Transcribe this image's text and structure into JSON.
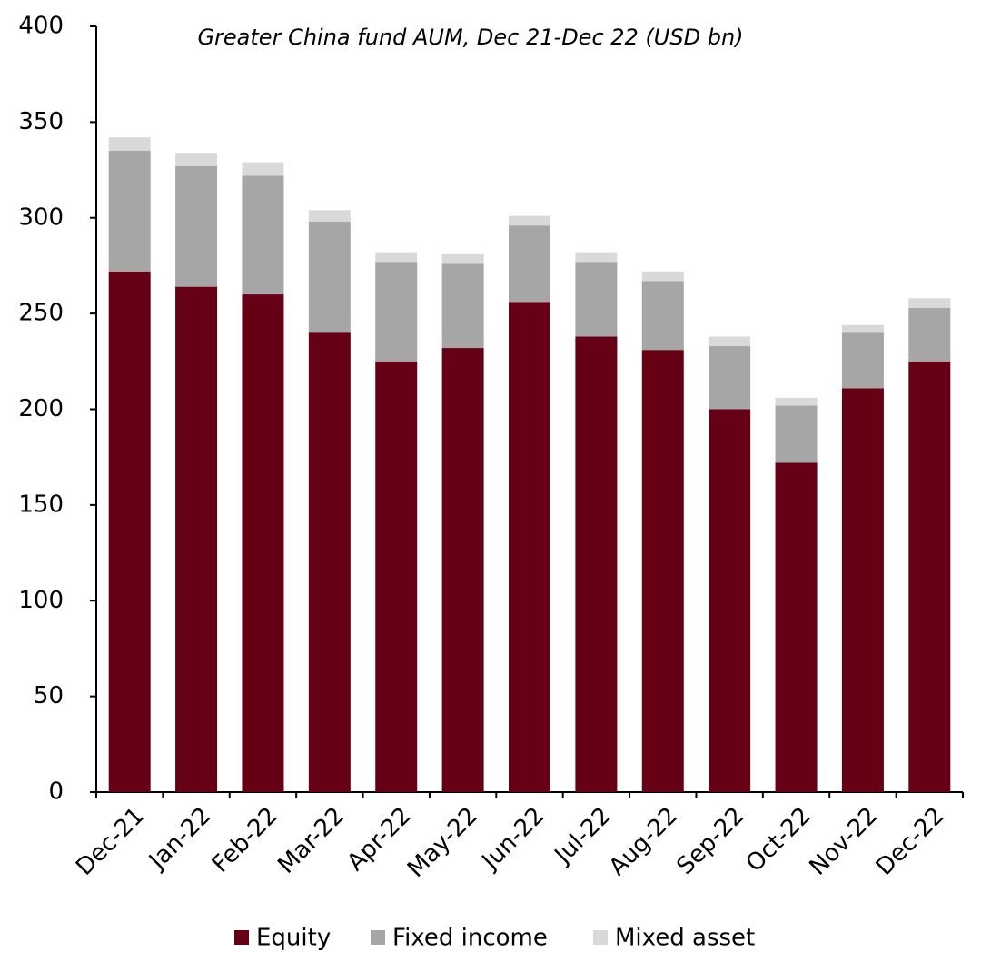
{
  "chart_data": {
    "type": "stacked_bar",
    "title": "Greater China fund AUM, Dec 21-Dec 22 (USD bn)",
    "categories": [
      "Dec-21",
      "Jan-22",
      "Feb-22",
      "Mar-22",
      "Apr-22",
      "May-22",
      "Jun-22",
      "Jul-22",
      "Aug-22",
      "Sep-22",
      "Oct-22",
      "Nov-22",
      "Dec-22"
    ],
    "series": [
      {
        "name": "Equity",
        "color": "#660014",
        "values": [
          272,
          264,
          260,
          240,
          225,
          232,
          256,
          238,
          231,
          200,
          172,
          211,
          225
        ]
      },
      {
        "name": "Fixed income",
        "color": "#a6a6a6",
        "values": [
          63,
          63,
          62,
          58,
          52,
          44,
          40,
          39,
          36,
          33,
          30,
          29,
          28
        ]
      },
      {
        "name": "Mixed asset",
        "color": "#d9d9d9",
        "values": [
          7,
          7,
          7,
          6,
          5,
          5,
          5,
          5,
          5,
          5,
          4,
          4,
          5
        ]
      }
    ],
    "ylim": [
      0,
      400
    ],
    "yticks": [
      0,
      50,
      100,
      150,
      200,
      250,
      300,
      350,
      400
    ],
    "legend": "bottom"
  }
}
